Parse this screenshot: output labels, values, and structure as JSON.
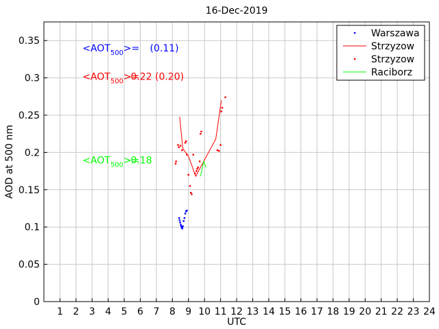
{
  "chart_data": {
    "type": "scatter",
    "title": "16-Dec-2019",
    "xlabel": "UTC",
    "ylabel": "AOD at 500 nm",
    "xlim": [
      0,
      24
    ],
    "ylim": [
      0,
      0.375
    ],
    "xticks": [
      1,
      2,
      3,
      4,
      5,
      6,
      7,
      8,
      9,
      10,
      11,
      12,
      13,
      14,
      15,
      16,
      17,
      18,
      19,
      20,
      21,
      22,
      23,
      24
    ],
    "yticks": [
      0,
      0.05,
      0.1,
      0.15,
      0.2,
      0.25,
      0.3,
      0.35
    ],
    "ytick_labels": [
      "0",
      "0.05",
      "0.1",
      "0.15",
      "0.2",
      "0.25",
      "0.3",
      "0.35"
    ],
    "grid": true,
    "legend_position": "top-right",
    "series": [
      {
        "name": "Warszawa",
        "kind": "points",
        "color": "#0000ff",
        "points": [
          [
            8.42,
            0.112
          ],
          [
            8.45,
            0.109
          ],
          [
            8.48,
            0.106
          ],
          [
            8.52,
            0.103
          ],
          [
            8.55,
            0.101
          ],
          [
            8.58,
            0.099
          ],
          [
            8.62,
            0.098
          ],
          [
            8.65,
            0.101
          ],
          [
            8.7,
            0.108
          ],
          [
            8.75,
            0.112
          ],
          [
            8.8,
            0.118
          ],
          [
            8.85,
            0.121
          ],
          [
            8.9,
            0.122
          ],
          [
            8.6,
            0.1
          ]
        ]
      },
      {
        "name": "Strzyzow",
        "kind": "line",
        "color": "#ff0000",
        "points": [
          [
            8.45,
            0.248
          ],
          [
            8.65,
            0.205
          ],
          [
            9.0,
            0.195
          ],
          [
            9.45,
            0.168
          ],
          [
            10.0,
            0.19
          ],
          [
            10.7,
            0.218
          ],
          [
            11.05,
            0.27
          ]
        ]
      },
      {
        "name": "Strzyzow",
        "kind": "points",
        "color": "#ff0000",
        "points": [
          [
            8.2,
            0.185
          ],
          [
            8.23,
            0.188
          ],
          [
            8.35,
            0.21
          ],
          [
            8.4,
            0.207
          ],
          [
            8.5,
            0.209
          ],
          [
            8.6,
            0.203
          ],
          [
            8.8,
            0.213
          ],
          [
            8.85,
            0.215
          ],
          [
            8.9,
            0.197
          ],
          [
            9.0,
            0.17
          ],
          [
            9.1,
            0.155
          ],
          [
            9.15,
            0.146
          ],
          [
            9.2,
            0.144
          ],
          [
            9.3,
            0.197
          ],
          [
            9.4,
            0.172
          ],
          [
            9.5,
            0.175
          ],
          [
            9.55,
            0.178
          ],
          [
            9.6,
            0.18
          ],
          [
            9.7,
            0.188
          ],
          [
            9.75,
            0.225
          ],
          [
            9.8,
            0.228
          ],
          [
            10.8,
            0.203
          ],
          [
            10.9,
            0.202
          ],
          [
            11.0,
            0.21
          ],
          [
            11.05,
            0.255
          ],
          [
            11.1,
            0.26
          ],
          [
            11.3,
            0.274
          ]
        ]
      },
      {
        "name": "Raciborz",
        "kind": "line",
        "color": "#00ff00",
        "points": [
          [
            9.75,
            0.168
          ],
          [
            9.85,
            0.178
          ],
          [
            9.95,
            0.188
          ],
          [
            10.1,
            0.18
          ]
        ]
      }
    ],
    "annotations": [
      {
        "prefix": "<AOT",
        "sub": "500",
        "suffix": ">=",
        "value": "(0.11)",
        "color": "#0000ff",
        "x": 2.4,
        "y": 0.34,
        "value_x": 6.6
      },
      {
        "prefix": "<AOT",
        "sub": "500",
        "suffix": ">=",
        "value": "0.22 (0.20)",
        "color": "#ff0000",
        "x": 2.4,
        "y": 0.302,
        "value_x": 5.4
      },
      {
        "prefix": "<AOT",
        "sub": "500",
        "suffix": ">=",
        "value": "0.18",
        "color": "#00ff00",
        "x": 2.4,
        "y": 0.19,
        "value_x": 5.4
      }
    ]
  }
}
